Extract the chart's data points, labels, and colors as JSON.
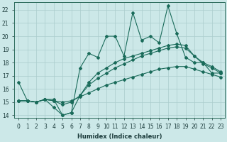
{
  "xlabel": "Humidex (Indice chaleur)",
  "bg_color": "#cce8e8",
  "grid_color": "#aacccc",
  "line_color": "#1a6b5a",
  "xlim": [
    -0.5,
    23.5
  ],
  "ylim": [
    13.8,
    22.6
  ],
  "yticks": [
    14,
    15,
    16,
    17,
    18,
    19,
    20,
    21,
    22
  ],
  "xticks": [
    0,
    1,
    2,
    3,
    4,
    5,
    6,
    7,
    8,
    9,
    10,
    11,
    12,
    13,
    14,
    15,
    16,
    17,
    18,
    19,
    20,
    21,
    22,
    23
  ],
  "line1_x": [
    0,
    1,
    2,
    3,
    4,
    5,
    6,
    7,
    8,
    9,
    10,
    11,
    12,
    13,
    14,
    15,
    16,
    17,
    18,
    19,
    20,
    21,
    22,
    23
  ],
  "line1_y": [
    16.5,
    15.1,
    15.0,
    15.2,
    15.2,
    14.0,
    14.2,
    17.6,
    18.7,
    18.4,
    20.0,
    20.0,
    18.5,
    21.8,
    19.7,
    20.0,
    19.5,
    22.3,
    20.2,
    18.4,
    18.0,
    18.0,
    17.2,
    17.2
  ],
  "line2_x": [
    0,
    1,
    2,
    3,
    4,
    5,
    6,
    7,
    8,
    9,
    10,
    11,
    12,
    13,
    14,
    15,
    16,
    17,
    18,
    19,
    20,
    21,
    22,
    23
  ],
  "line2_y": [
    15.1,
    15.1,
    15.0,
    15.2,
    15.1,
    15.0,
    15.1,
    15.4,
    15.7,
    16.0,
    16.3,
    16.5,
    16.7,
    16.9,
    17.1,
    17.3,
    17.5,
    17.6,
    17.7,
    17.7,
    17.5,
    17.3,
    17.1,
    16.9
  ],
  "line3_x": [
    0,
    1,
    2,
    3,
    4,
    5,
    6,
    7,
    8,
    9,
    10,
    11,
    12,
    13,
    14,
    15,
    16,
    17,
    18,
    19,
    20,
    21,
    22,
    23
  ],
  "line3_y": [
    15.1,
    15.1,
    15.0,
    15.2,
    15.1,
    14.8,
    15.0,
    15.5,
    16.3,
    16.8,
    17.2,
    17.6,
    17.9,
    18.2,
    18.5,
    18.7,
    18.9,
    19.1,
    19.2,
    19.1,
    18.5,
    18.0,
    17.7,
    17.3
  ],
  "line4_x": [
    0,
    1,
    2,
    3,
    4,
    5,
    6,
    7,
    8,
    9,
    10,
    11,
    12,
    13,
    14,
    15,
    16,
    17,
    18,
    19,
    20,
    21,
    22,
    23
  ],
  "line4_y": [
    15.1,
    15.1,
    15.0,
    15.2,
    14.6,
    14.0,
    14.2,
    15.5,
    16.5,
    17.2,
    17.6,
    18.0,
    18.3,
    18.5,
    18.7,
    18.9,
    19.1,
    19.3,
    19.4,
    19.3,
    18.5,
    17.9,
    17.6,
    17.2
  ]
}
